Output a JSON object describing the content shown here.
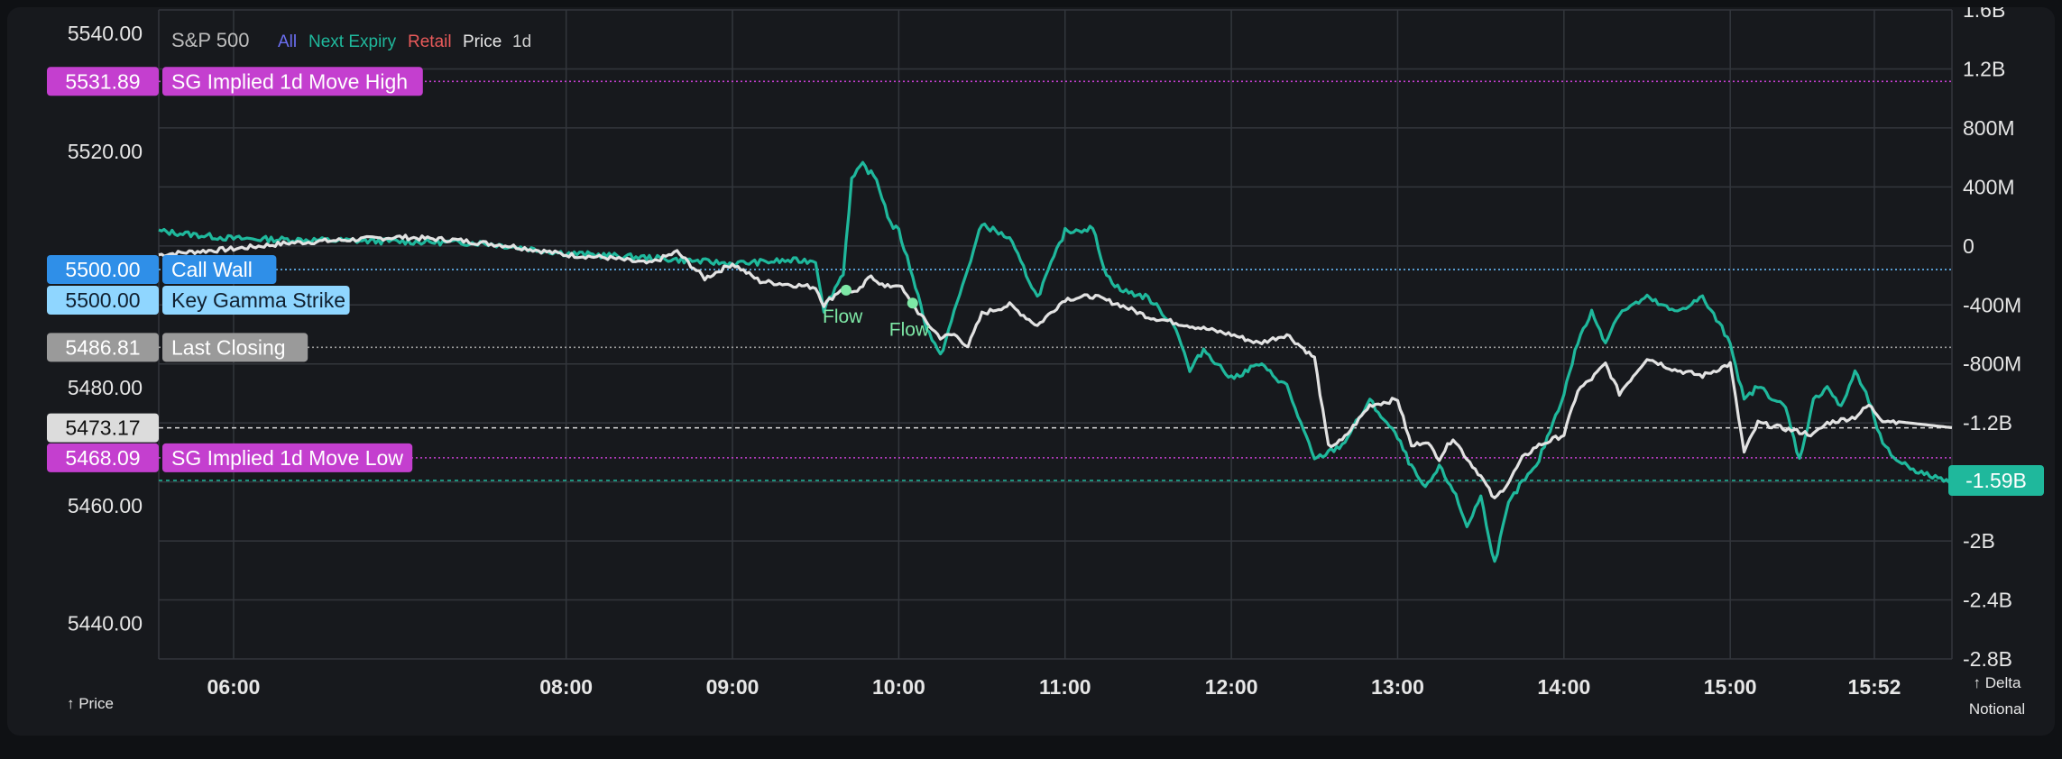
{
  "header": {
    "title": "S&P 500",
    "legend": [
      {
        "label": "All",
        "color": "#6b6ef0"
      },
      {
        "label": "Next Expiry",
        "color": "#1fb89c"
      },
      {
        "label": "Retail",
        "color": "#e85a5a"
      },
      {
        "label": "Price",
        "color": "#e6e6e6"
      },
      {
        "label": "1d",
        "color": "#cfcfcf"
      }
    ]
  },
  "axes": {
    "left_name": "↑ Price",
    "right_name_1": "↑ Delta",
    "right_name_2": "Notional"
  },
  "chart_data": {
    "type": "line",
    "x_ticks": [
      "06:00",
      "08:00",
      "09:00",
      "10:00",
      "11:00",
      "12:00",
      "13:00",
      "14:00",
      "15:00",
      "15:52"
    ],
    "x_range": [
      "05:33",
      "16:20"
    ],
    "left_axis": {
      "ticks": [
        "5540.00",
        "5520.00",
        "5500.00",
        "5480.00",
        "5460.00",
        "5440.00"
      ],
      "ylim": [
        5434,
        5544
      ]
    },
    "right_axis": {
      "ticks": [
        "1.6B",
        "1.2B",
        "800M",
        "400M",
        "0",
        "-400M",
        "-800M",
        "-1.2B",
        "-1.6B",
        "-2B",
        "-2.4B",
        "-2.8B"
      ],
      "ylim": [
        -2.8,
        1.6
      ],
      "unit": "B"
    },
    "grid": true,
    "levels": [
      {
        "label": "SG Implied 1d Move High",
        "value": "5531.89",
        "color": "#c43fcf",
        "text_color": "#ffffff",
        "line": "dotted"
      },
      {
        "label": "Call Wall",
        "value": "5500.00",
        "color": "#2f8fe8",
        "text_color": "#ffffff",
        "line": "dotted"
      },
      {
        "label": "Key Gamma Strike",
        "value": "5500.00",
        "color": "#8fd6ff",
        "text_color": "#102030",
        "line": "none"
      },
      {
        "label": "Last Closing",
        "value": "5486.81",
        "color": "#9a9a9a",
        "text_color": "#ffffff",
        "line": "dotted"
      },
      {
        "label": "",
        "value": "5473.17",
        "color": "#dcdcdc",
        "text_color": "#111111",
        "line": "dashed"
      },
      {
        "label": "SG Implied 1d Move Low",
        "value": "5468.09",
        "color": "#c43fcf",
        "text_color": "#ffffff",
        "line": "dotted"
      }
    ],
    "current_delta_label": "-1.59B",
    "annotations": [
      {
        "label": "Flow",
        "time": "09:41",
        "price": 5496.5
      },
      {
        "label": "Flow",
        "time": "10:05",
        "price": 5494.3
      }
    ],
    "series": [
      {
        "name": "Price",
        "color": "#e2e2e2",
        "axis": "left",
        "points": [
          [
            "05:33",
            5502.5
          ],
          [
            "05:45",
            5503.0
          ],
          [
            "06:00",
            5503.5
          ],
          [
            "06:20",
            5504.5
          ],
          [
            "06:40",
            5505.0
          ],
          [
            "07:00",
            5505.5
          ],
          [
            "07:20",
            5505.0
          ],
          [
            "07:40",
            5504.0
          ],
          [
            "08:00",
            5502.5
          ],
          [
            "08:15",
            5502.0
          ],
          [
            "08:30",
            5501.0
          ],
          [
            "08:40",
            5503.0
          ],
          [
            "08:50",
            5498.5
          ],
          [
            "09:00",
            5501.0
          ],
          [
            "09:10",
            5498.0
          ],
          [
            "09:20",
            5497.5
          ],
          [
            "09:30",
            5497.0
          ],
          [
            "09:33",
            5494.0
          ],
          [
            "09:40",
            5497.0
          ],
          [
            "09:45",
            5496.0
          ],
          [
            "09:50",
            5499.0
          ],
          [
            "09:55",
            5497.0
          ],
          [
            "10:00",
            5497.5
          ],
          [
            "10:05",
            5494.0
          ],
          [
            "10:10",
            5491.0
          ],
          [
            "10:15",
            5488.5
          ],
          [
            "10:20",
            5489.0
          ],
          [
            "10:25",
            5487.0
          ],
          [
            "10:30",
            5492.5
          ],
          [
            "10:40",
            5494.0
          ],
          [
            "10:50",
            5490.5
          ],
          [
            "11:00",
            5495.0
          ],
          [
            "11:10",
            5495.5
          ],
          [
            "11:20",
            5494.0
          ],
          [
            "11:30",
            5492.0
          ],
          [
            "11:40",
            5491.0
          ],
          [
            "11:50",
            5490.0
          ],
          [
            "12:00",
            5489.0
          ],
          [
            "12:10",
            5487.5
          ],
          [
            "12:20",
            5489.0
          ],
          [
            "12:30",
            5485.0
          ],
          [
            "12:35",
            5470.0
          ],
          [
            "12:40",
            5471.0
          ],
          [
            "12:50",
            5477.0
          ],
          [
            "13:00",
            5478.0
          ],
          [
            "13:05",
            5470.0
          ],
          [
            "13:10",
            5471.0
          ],
          [
            "13:15",
            5468.0
          ],
          [
            "13:20",
            5471.5
          ],
          [
            "13:25",
            5468.0
          ],
          [
            "13:30",
            5465.0
          ],
          [
            "13:35",
            5461.0
          ],
          [
            "13:40",
            5464.0
          ],
          [
            "13:45",
            5468.0
          ],
          [
            "13:50",
            5470.0
          ],
          [
            "14:00",
            5472.0
          ],
          [
            "14:05",
            5479.5
          ],
          [
            "14:10",
            5481.5
          ],
          [
            "14:15",
            5484.0
          ],
          [
            "14:20",
            5479.0
          ],
          [
            "14:30",
            5485.0
          ],
          [
            "14:40",
            5483.0
          ],
          [
            "14:50",
            5482.0
          ],
          [
            "15:00",
            5484.0
          ],
          [
            "15:05",
            5469.0
          ],
          [
            "15:10",
            5474.0
          ],
          [
            "15:20",
            5473.0
          ],
          [
            "15:30",
            5472.0
          ],
          [
            "15:35",
            5474.0
          ],
          [
            "15:45",
            5475.0
          ],
          [
            "15:50",
            5477.0
          ],
          [
            "15:55",
            5474.5
          ],
          [
            "16:20",
            5473.2
          ]
        ]
      },
      {
        "name": "Next Expiry",
        "color": "#1fb89c",
        "axis": "right",
        "points": [
          [
            "05:33",
            0.1
          ],
          [
            "06:00",
            0.05
          ],
          [
            "06:30",
            0.04
          ],
          [
            "07:00",
            0.03
          ],
          [
            "07:30",
            0.02
          ],
          [
            "08:00",
            -0.05
          ],
          [
            "08:30",
            -0.08
          ],
          [
            "09:00",
            -0.12
          ],
          [
            "09:20",
            -0.1
          ],
          [
            "09:30",
            -0.1
          ],
          [
            "09:33",
            -0.43
          ],
          [
            "09:40",
            -0.18
          ],
          [
            "09:43",
            0.45
          ],
          [
            "09:47",
            0.55
          ],
          [
            "09:52",
            0.45
          ],
          [
            "09:57",
            0.15
          ],
          [
            "10:00",
            0.1
          ],
          [
            "10:05",
            -0.2
          ],
          [
            "10:10",
            -0.55
          ],
          [
            "10:15",
            -0.75
          ],
          [
            "10:20",
            -0.45
          ],
          [
            "10:30",
            0.15
          ],
          [
            "10:40",
            0.05
          ],
          [
            "10:50",
            -0.35
          ],
          [
            "11:00",
            0.1
          ],
          [
            "11:10",
            0.12
          ],
          [
            "11:15",
            -0.2
          ],
          [
            "11:20",
            -0.3
          ],
          [
            "11:30",
            -0.35
          ],
          [
            "11:40",
            -0.55
          ],
          [
            "11:45",
            -0.85
          ],
          [
            "11:50",
            -0.7
          ],
          [
            "12:00",
            -0.9
          ],
          [
            "12:10",
            -0.8
          ],
          [
            "12:20",
            -0.95
          ],
          [
            "12:25",
            -1.2
          ],
          [
            "12:30",
            -1.45
          ],
          [
            "12:40",
            -1.35
          ],
          [
            "12:50",
            -1.05
          ],
          [
            "13:00",
            -1.3
          ],
          [
            "13:05",
            -1.5
          ],
          [
            "13:10",
            -1.65
          ],
          [
            "13:15",
            -1.5
          ],
          [
            "13:20",
            -1.65
          ],
          [
            "13:25",
            -1.9
          ],
          [
            "13:30",
            -1.7
          ],
          [
            "13:35",
            -2.15
          ],
          [
            "13:40",
            -1.75
          ],
          [
            "13:45",
            -1.6
          ],
          [
            "13:50",
            -1.5
          ],
          [
            "14:00",
            -1.0
          ],
          [
            "14:05",
            -0.65
          ],
          [
            "14:10",
            -0.45
          ],
          [
            "14:15",
            -0.65
          ],
          [
            "14:20",
            -0.45
          ],
          [
            "14:30",
            -0.35
          ],
          [
            "14:40",
            -0.45
          ],
          [
            "14:50",
            -0.35
          ],
          [
            "15:00",
            -0.65
          ],
          [
            "15:05",
            -1.05
          ],
          [
            "15:10",
            -0.95
          ],
          [
            "15:20",
            -1.1
          ],
          [
            "15:25",
            -1.45
          ],
          [
            "15:30",
            -1.05
          ],
          [
            "15:35",
            -0.95
          ],
          [
            "15:40",
            -1.1
          ],
          [
            "15:45",
            -0.85
          ],
          [
            "15:50",
            -1.05
          ],
          [
            "15:55",
            -1.35
          ],
          [
            "16:00",
            -1.45
          ],
          [
            "16:10",
            -1.55
          ],
          [
            "16:20",
            -1.59
          ]
        ]
      }
    ]
  }
}
